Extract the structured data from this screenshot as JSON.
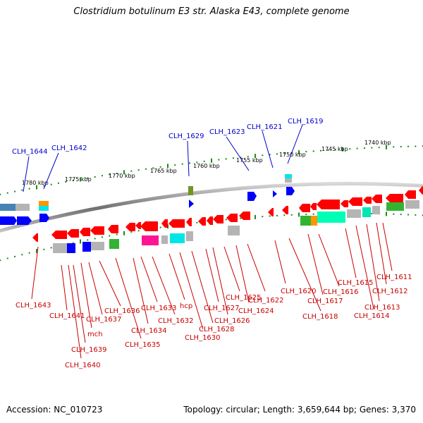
{
  "title": "Clostridium botulinum E3 str. Alaska E43, complete genome",
  "footer": {
    "accession": "Accession: NC_010723",
    "topology": "Topology: circular; Length: 3,659,644 bp; Genes: 3,370"
  },
  "kbp_labels": [
    "1780 kbp",
    "1775 kbp",
    "1770 kbp",
    "1765 kbp",
    "1760 kbp",
    "1755 kbp",
    "1750 kbp",
    "1745 kbp",
    "1740 kbp"
  ],
  "upper_genes": [
    "CLH_1644",
    "CLH_1642",
    "CLH_1629",
    "CLH_1623",
    "CLH_1621",
    "CLH_1619"
  ],
  "lower_genes": [
    "CLH_1643",
    "CLH_1641",
    "CLH_1639",
    "CLH_1640",
    "mch",
    "CLH_1637",
    "CLH_1636",
    "CLH_1635",
    "CLH_1634",
    "CLH_1633",
    "CLH_1632",
    "hcp",
    "CLH_1630",
    "CLH_1628",
    "CLH_1627",
    "CLH_1626",
    "CLH_1625",
    "CLH_1624",
    "CLH_1622",
    "CLH_1620",
    "CLH_1618",
    "CLH_1617",
    "CLH_1616",
    "CLH_1615",
    "CLH_1614",
    "CLH_1613",
    "CLH_1612",
    "CLH_1611"
  ],
  "colors": {
    "forward_gene": "#0000ff",
    "reverse_gene": "#ff0000",
    "label_upper": "#0000c8",
    "label_lower": "#c80000",
    "tick": "#1a8c1a",
    "backbone": "#808080",
    "gray_feature": "#b4b4b4",
    "cyan_feature": "#00e6e6",
    "magenta_feature": "#ff1493",
    "green_feature": "#32b432",
    "olive_feature": "#6e9628",
    "orange_feature": "#ff9600",
    "aqua_feature": "#00ffb4",
    "steel_feature": "#4682b4"
  }
}
